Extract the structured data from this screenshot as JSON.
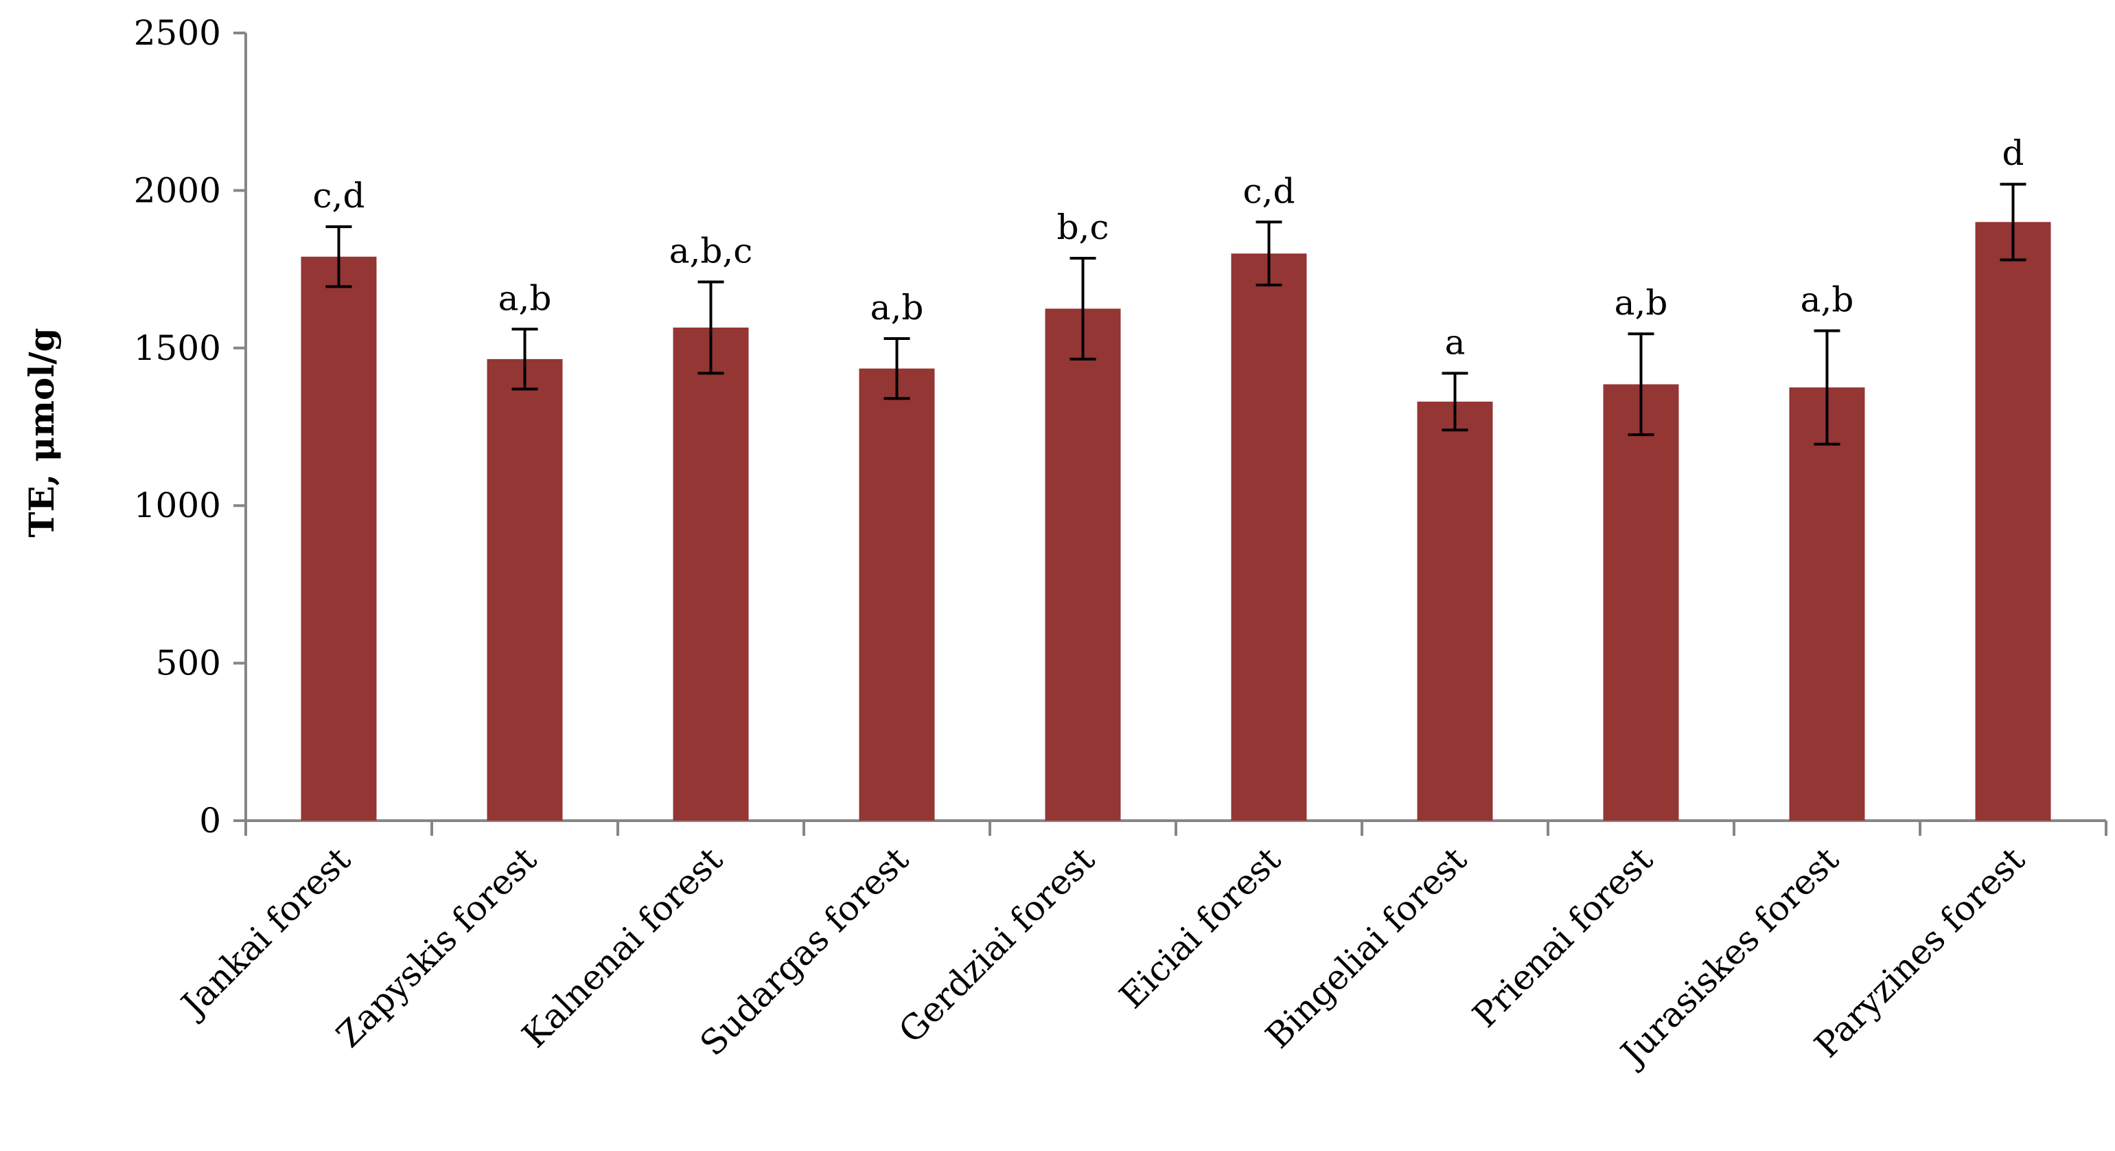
{
  "chart_data": {
    "type": "bar",
    "ylabel": "TE, μmol/g",
    "xlabel": "",
    "ylim": [
      0,
      2500
    ],
    "yticks": [
      "0",
      "500",
      "1000",
      "1500",
      "2000",
      "2500"
    ],
    "grid": false,
    "bar_color": "#943634",
    "categories": [
      "Jankai forest",
      "Zapyskis forest",
      "Kalnenai forest",
      "Sudargas forest",
      "Gerdziai forest",
      "Eiciai forest",
      "Bingeliai forest",
      "Prienai forest",
      "Jurasiskes forest",
      "Paryzines forest"
    ],
    "values": [
      1790,
      1465,
      1565,
      1435,
      1625,
      1800,
      1330,
      1385,
      1375,
      1900
    ],
    "error": [
      95,
      95,
      145,
      95,
      160,
      100,
      90,
      160,
      180,
      120
    ],
    "significance": [
      "c,d",
      "a,b",
      "a,b,c",
      "a,b",
      "b,c",
      "c,d",
      "a",
      "a,b",
      "a,b",
      "d"
    ]
  }
}
